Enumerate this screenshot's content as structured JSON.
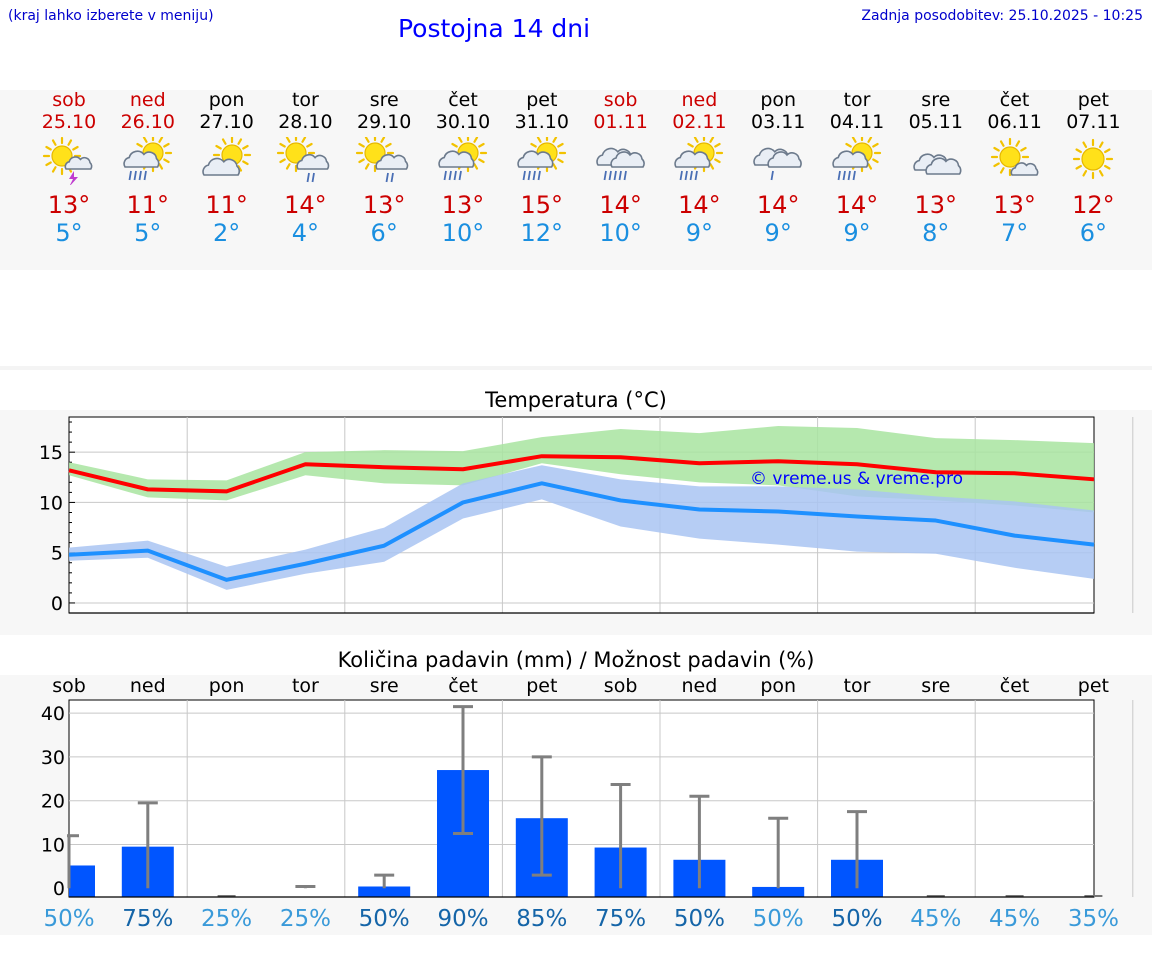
{
  "header": {
    "hint": "(kraj lahko izberete v meniju)",
    "title": "Postojna 14 dni",
    "updated": "Zadnja posodobitev: 25.10.2025 - 10:25"
  },
  "days": [
    {
      "name": "sob",
      "date": "25.10",
      "weekend": true,
      "icon": "sun-cloud-thunder-icon",
      "tmax": "13°",
      "tmin": "5°"
    },
    {
      "name": "ned",
      "date": "26.10",
      "weekend": true,
      "icon": "sun-cloud-rain-icon",
      "tmax": "11°",
      "tmin": "5°"
    },
    {
      "name": "pon",
      "date": "27.10",
      "weekend": false,
      "icon": "sun-cloud-icon",
      "tmax": "11°",
      "tmin": "2°"
    },
    {
      "name": "tor",
      "date": "28.10",
      "weekend": false,
      "icon": "sun-cloud-light-rain-icon",
      "tmax": "14°",
      "tmin": "4°"
    },
    {
      "name": "sre",
      "date": "29.10",
      "weekend": false,
      "icon": "sun-cloud-light-rain-icon",
      "tmax": "13°",
      "tmin": "6°"
    },
    {
      "name": "čet",
      "date": "30.10",
      "weekend": false,
      "icon": "sun-cloud-rain-icon",
      "tmax": "13°",
      "tmin": "10°"
    },
    {
      "name": "pet",
      "date": "31.10",
      "weekend": false,
      "icon": "sun-cloud-rain-icon",
      "tmax": "15°",
      "tmin": "12°"
    },
    {
      "name": "sob",
      "date": "01.11",
      "weekend": true,
      "icon": "cloud-rain-icon",
      "tmax": "14°",
      "tmin": "10°"
    },
    {
      "name": "ned",
      "date": "02.11",
      "weekend": true,
      "icon": "sun-cloud-rain-icon",
      "tmax": "14°",
      "tmin": "9°"
    },
    {
      "name": "pon",
      "date": "03.11",
      "weekend": false,
      "icon": "cloud-light-rain-icon",
      "tmax": "14°",
      "tmin": "9°"
    },
    {
      "name": "tor",
      "date": "04.11",
      "weekend": false,
      "icon": "sun-cloud-rain-icon",
      "tmax": "14°",
      "tmin": "9°"
    },
    {
      "name": "sre",
      "date": "05.11",
      "weekend": false,
      "icon": "cloud-icon",
      "tmax": "13°",
      "tmin": "8°"
    },
    {
      "name": "čet",
      "date": "06.11",
      "weekend": false,
      "icon": "sun-small-cloud-icon",
      "tmax": "13°",
      "tmin": "7°"
    },
    {
      "name": "pet",
      "date": "07.11",
      "weekend": false,
      "icon": "sun-icon",
      "tmax": "12°",
      "tmin": "6°"
    }
  ],
  "colors": {
    "weekend": "#cc0000",
    "max_line": "#ff0000",
    "min_line": "#1e90ff",
    "max_band": "#a8e4a0",
    "min_band": "#a9c4f2",
    "bar": "#0055ff"
  },
  "chart_data": [
    {
      "type": "line",
      "title": "Temperatura (°C)",
      "watermark": "© vreme.us & vreme.pro",
      "ylim": [
        -1,
        18.5
      ],
      "yticks": [
        0,
        5,
        10,
        15
      ],
      "series": [
        {
          "name": "max",
          "values": [
            13.2,
            11.3,
            11.1,
            13.8,
            13.5,
            13.3,
            14.6,
            14.5,
            13.9,
            14.1,
            13.8,
            13.0,
            12.9,
            12.3
          ]
        },
        {
          "name": "max_upper",
          "values": [
            14.0,
            12.3,
            12.2,
            15.0,
            15.2,
            15.1,
            16.5,
            17.3,
            16.9,
            17.6,
            17.4,
            16.4,
            16.2,
            15.9
          ]
        },
        {
          "name": "max_lower",
          "values": [
            12.7,
            10.5,
            10.2,
            12.7,
            11.9,
            11.7,
            13.9,
            12.8,
            12.0,
            11.7,
            10.6,
            10.2,
            9.7,
            9.0
          ]
        },
        {
          "name": "min",
          "values": [
            4.8,
            5.2,
            2.3,
            3.9,
            5.7,
            10.0,
            11.9,
            10.2,
            9.3,
            9.1,
            8.6,
            8.2,
            6.7,
            5.8
          ]
        },
        {
          "name": "min_upper",
          "values": [
            5.5,
            6.2,
            3.6,
            5.3,
            7.5,
            11.9,
            13.7,
            12.3,
            11.6,
            11.6,
            11.3,
            10.6,
            10.1,
            9.2
          ]
        },
        {
          "name": "min_lower",
          "values": [
            4.2,
            4.5,
            1.3,
            2.9,
            4.1,
            8.4,
            10.3,
            7.6,
            6.4,
            5.8,
            5.1,
            4.9,
            3.5,
            2.4
          ]
        }
      ]
    },
    {
      "type": "bar",
      "title": "Količina padavin (mm) / Možnost padavin (%)",
      "ylim": [
        -2,
        43
      ],
      "yticks": [
        0,
        10,
        20,
        30,
        40
      ],
      "ytick_labels": [
        "0",
        "10",
        "20",
        "30",
        "40"
      ],
      "categories": [
        "sob",
        "ned",
        "pon",
        "tor",
        "sre",
        "čet",
        "pet",
        "sob",
        "ned",
        "pon",
        "tor",
        "sre",
        "čet",
        "pet"
      ],
      "values": [
        5.2,
        9.5,
        0,
        0,
        0.4,
        27.0,
        16.0,
        9.3,
        6.5,
        0.3,
        6.5,
        0,
        0,
        0
      ],
      "error_high": [
        12,
        19.5,
        0,
        0.4,
        3,
        41.5,
        30,
        23.7,
        21,
        16,
        17.5,
        0,
        0,
        0
      ],
      "error_low": [
        0,
        0,
        0,
        0,
        0,
        12.5,
        3,
        0,
        0,
        0,
        0,
        0,
        0,
        0
      ],
      "probability": [
        "50%",
        "75%",
        "25%",
        "25%",
        "50%",
        "90%",
        "85%",
        "75%",
        "50%",
        "50%",
        "50%",
        "45%",
        "45%",
        "35%"
      ],
      "probability_colors": [
        "#3a9ad9",
        "#1565a8",
        "#3a9ad9",
        "#3a9ad9",
        "#1565a8",
        "#1565a8",
        "#1565a8",
        "#1565a8",
        "#1565a8",
        "#3a9ad9",
        "#1565a8",
        "#3a9ad9",
        "#3a9ad9",
        "#3a9ad9"
      ]
    }
  ]
}
